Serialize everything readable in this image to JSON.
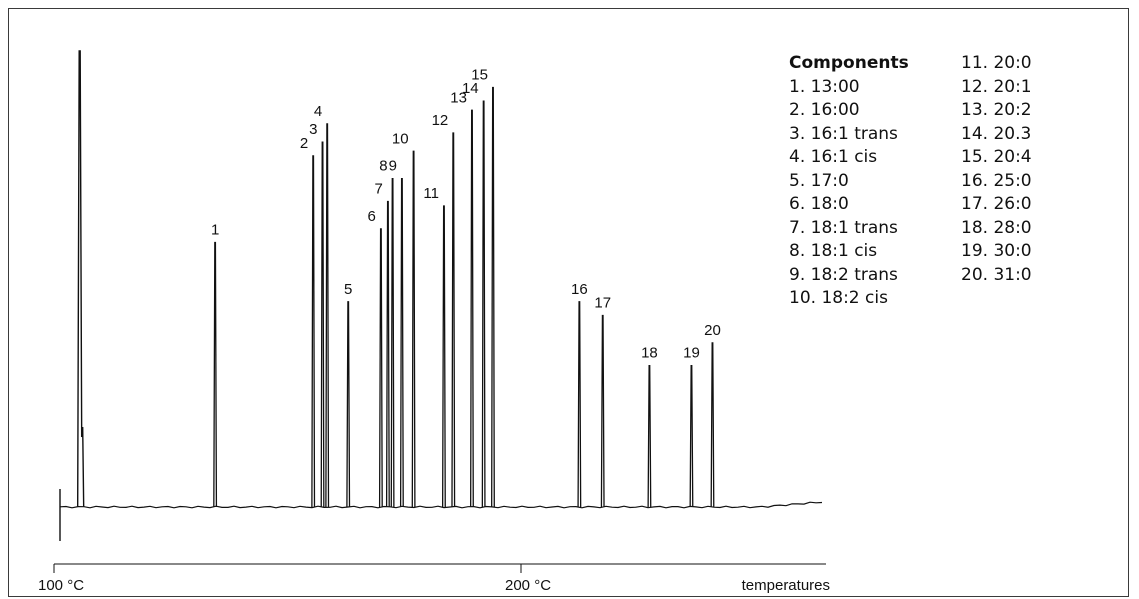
{
  "chart_data": {
    "type": "line",
    "title": "",
    "xlabel": "temperatures",
    "ylabel": "",
    "x_ticks": [
      {
        "value": 100,
        "label": "100 °C"
      },
      {
        "value": 200,
        "label": "200 °C"
      }
    ],
    "xlim": [
      100,
      265
    ],
    "ylim": [
      0,
      100
    ],
    "grid": false,
    "solvent_peak": {
      "x": 105.5,
      "height": 100
    },
    "peaks": [
      {
        "label": "1",
        "x": 134.5,
        "height": 58
      },
      {
        "label": "2",
        "x": 155.5,
        "height": 77
      },
      {
        "label": "3",
        "x": 157.5,
        "height": 80
      },
      {
        "label": "4",
        "x": 158.5,
        "height": 84
      },
      {
        "label": "5",
        "x": 163,
        "height": 45
      },
      {
        "label": "6",
        "x": 170,
        "height": 61
      },
      {
        "label": "7",
        "x": 171.5,
        "height": 67
      },
      {
        "label": "8",
        "x": 172.5,
        "height": 72
      },
      {
        "label": "9",
        "x": 174.5,
        "height": 72
      },
      {
        "label": "10",
        "x": 177,
        "height": 78
      },
      {
        "label": "11",
        "x": 183.5,
        "height": 66
      },
      {
        "label": "12",
        "x": 185.5,
        "height": 82
      },
      {
        "label": "13",
        "x": 189.5,
        "height": 87
      },
      {
        "label": "14",
        "x": 192,
        "height": 89
      },
      {
        "label": "15",
        "x": 194,
        "height": 92
      },
      {
        "label": "16",
        "x": 212.5,
        "height": 45
      },
      {
        "label": "17",
        "x": 217.5,
        "height": 42
      },
      {
        "label": "18",
        "x": 227.5,
        "height": 31
      },
      {
        "label": "19",
        "x": 236.5,
        "height": 31
      },
      {
        "label": "20",
        "x": 241,
        "height": 36
      }
    ]
  },
  "legend": {
    "title": "Components",
    "items": [
      "1. 13:00",
      "2. 16:00",
      "3. 16:1 trans",
      "4. 16:1 cis",
      "5. 17:0",
      "6. 18:0",
      "7. 18:1 trans",
      "8. 18:1 cis",
      "9. 18:2 trans",
      "10. 18:2 cis",
      "11. 20:0",
      "12. 20:1",
      "13. 20:2",
      "14. 20.3",
      "15. 20:4",
      "16. 25:0",
      "17. 26:0",
      "18. 28:0",
      "19. 30:0",
      "20. 31:0"
    ]
  }
}
